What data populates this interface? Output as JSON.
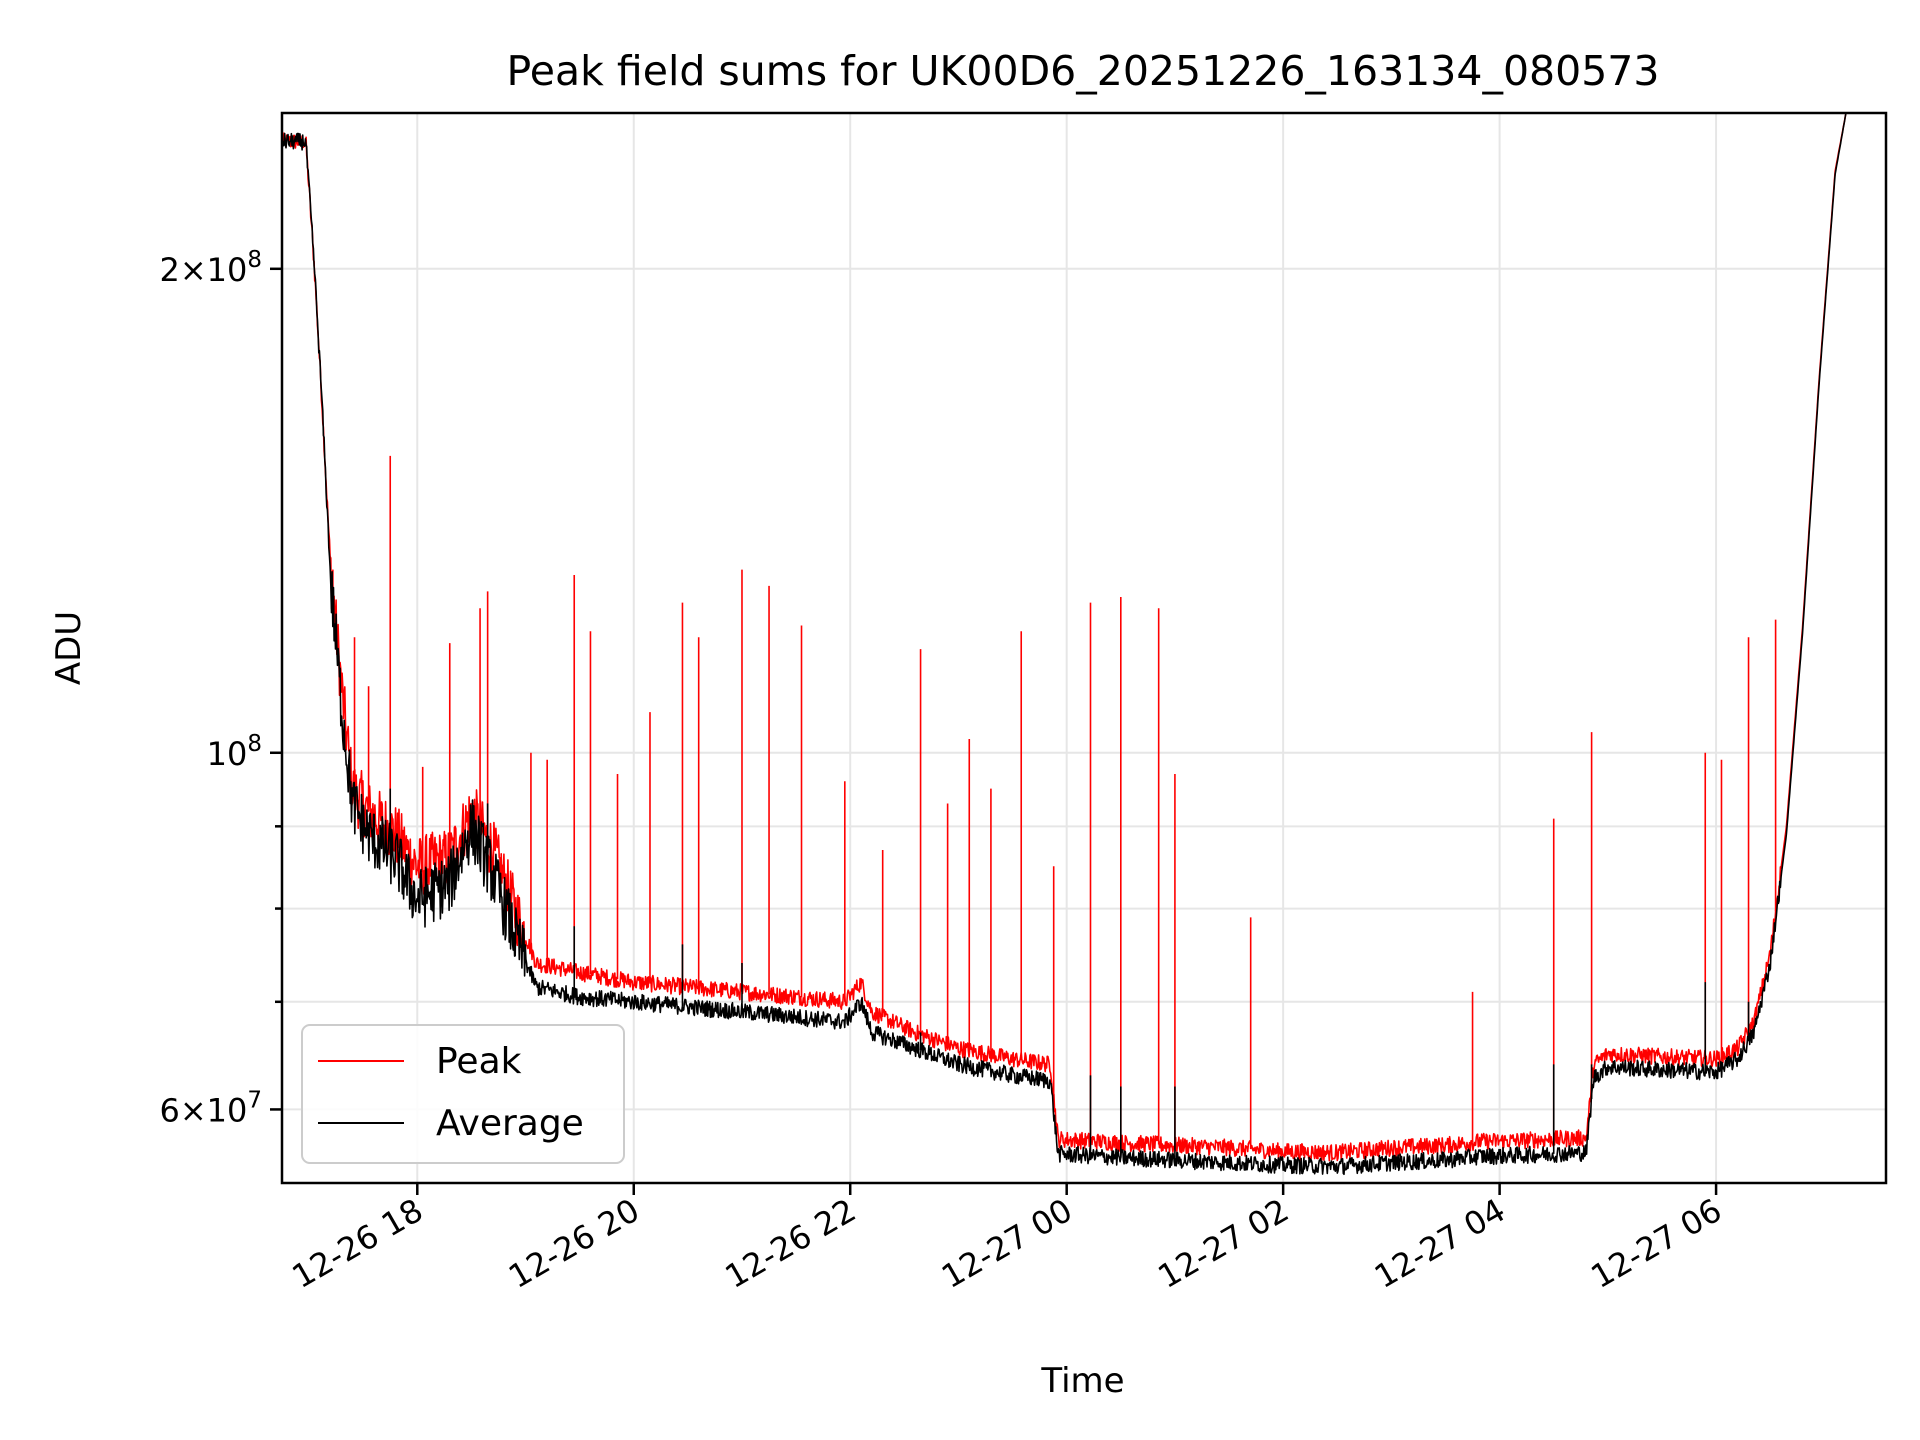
{
  "chart_data": {
    "type": "line",
    "title": "Peak field sums for UK00D6_20251226_163134_080573",
    "xlabel": "Time",
    "ylabel": "ADU",
    "yscale": "log",
    "ylim": [
      54000000,
      250000000
    ],
    "xlim_hours": [
      16.75,
      31.57
    ],
    "grid": true,
    "legend_position": "lower-left",
    "x_ticks": [
      {
        "hour": 18,
        "label": "12-26 18"
      },
      {
        "hour": 20,
        "label": "12-26 20"
      },
      {
        "hour": 22,
        "label": "12-26 22"
      },
      {
        "hour": 24,
        "label": "12-27 00"
      },
      {
        "hour": 26,
        "label": "12-27 02"
      },
      {
        "hour": 28,
        "label": "12-27 04"
      },
      {
        "hour": 30,
        "label": "12-27 06"
      }
    ],
    "y_major_ticks": [
      {
        "value": 60000000,
        "mant": "6",
        "exp": "7"
      },
      {
        "value": 100000000,
        "mant": "",
        "exp": "8"
      },
      {
        "value": 200000000,
        "mant": "2",
        "exp": "8"
      }
    ],
    "y_minor_ticks": [
      70000000,
      80000000,
      90000000
    ],
    "series": [
      {
        "name": "Peak",
        "color": "#ff0000",
        "baseline": [
          [
            16.75,
            240000000
          ],
          [
            16.97,
            240000000
          ],
          [
            17.05,
            200000000
          ],
          [
            17.12,
            165000000
          ],
          [
            17.2,
            130000000
          ],
          [
            17.3,
            110000000
          ],
          [
            17.4,
            95000000
          ],
          [
            17.55,
            92000000
          ],
          [
            17.8,
            89000000
          ],
          [
            18.0,
            85000000
          ],
          [
            18.3,
            86000000
          ],
          [
            18.5,
            92000000
          ],
          [
            18.7,
            87000000
          ],
          [
            18.9,
            80000000
          ],
          [
            19.1,
            74000000
          ],
          [
            19.5,
            73000000
          ],
          [
            20.0,
            72000000
          ],
          [
            20.5,
            71500000
          ],
          [
            21.0,
            71000000
          ],
          [
            21.5,
            70500000
          ],
          [
            21.95,
            70000000
          ],
          [
            22.1,
            72000000
          ],
          [
            22.2,
            69000000
          ],
          [
            22.6,
            67000000
          ],
          [
            23.0,
            65500000
          ],
          [
            23.5,
            64500000
          ],
          [
            23.85,
            64000000
          ],
          [
            23.92,
            57500000
          ],
          [
            24.5,
            57200000
          ],
          [
            25.0,
            57000000
          ],
          [
            25.5,
            56800000
          ],
          [
            26.0,
            56500000
          ],
          [
            26.5,
            56400000
          ],
          [
            27.0,
            56800000
          ],
          [
            27.5,
            57000000
          ],
          [
            27.8,
            57300000
          ],
          [
            28.2,
            57400000
          ],
          [
            28.8,
            57600000
          ],
          [
            28.87,
            64000000
          ],
          [
            29.0,
            65000000
          ],
          [
            29.5,
            64700000
          ],
          [
            30.0,
            64500000
          ],
          [
            30.2,
            65500000
          ],
          [
            30.35,
            68000000
          ],
          [
            30.5,
            75000000
          ],
          [
            30.65,
            90000000
          ],
          [
            30.8,
            120000000
          ],
          [
            30.95,
            170000000
          ],
          [
            31.1,
            230000000
          ],
          [
            31.2,
            250000000
          ],
          [
            31.57,
            250000000
          ]
        ],
        "spikes": [
          [
            17.22,
            130000000
          ],
          [
            17.42,
            118000000
          ],
          [
            17.55,
            110000000
          ],
          [
            17.75,
            153000000
          ],
          [
            18.05,
            98000000
          ],
          [
            18.3,
            117000000
          ],
          [
            18.58,
            123000000
          ],
          [
            18.65,
            126000000
          ],
          [
            19.05,
            100000000
          ],
          [
            19.2,
            99000000
          ],
          [
            19.45,
            129000000
          ],
          [
            19.6,
            119000000
          ],
          [
            19.85,
            97000000
          ],
          [
            20.15,
            106000000
          ],
          [
            20.45,
            124000000
          ],
          [
            20.6,
            118000000
          ],
          [
            21.0,
            130000000
          ],
          [
            21.25,
            127000000
          ],
          [
            21.55,
            120000000
          ],
          [
            21.95,
            96000000
          ],
          [
            22.3,
            87000000
          ],
          [
            22.65,
            116000000
          ],
          [
            22.9,
            93000000
          ],
          [
            23.1,
            102000000
          ],
          [
            23.3,
            95000000
          ],
          [
            23.58,
            119000000
          ],
          [
            23.88,
            85000000
          ],
          [
            24.22,
            124000000
          ],
          [
            24.5,
            125000000
          ],
          [
            24.85,
            123000000
          ],
          [
            25.0,
            97000000
          ],
          [
            25.7,
            79000000
          ],
          [
            27.75,
            71000000
          ],
          [
            28.5,
            91000000
          ],
          [
            28.85,
            103000000
          ],
          [
            29.9,
            100000000
          ],
          [
            30.05,
            99000000
          ],
          [
            30.3,
            118000000
          ],
          [
            30.55,
            121000000
          ]
        ]
      },
      {
        "name": "Average",
        "color": "#000000",
        "baseline": [
          [
            16.75,
            240000000
          ],
          [
            16.97,
            240000000
          ],
          [
            17.05,
            200000000
          ],
          [
            17.12,
            165000000
          ],
          [
            17.2,
            128000000
          ],
          [
            17.3,
            107000000
          ],
          [
            17.4,
            93000000
          ],
          [
            17.55,
            89000000
          ],
          [
            17.8,
            86000000
          ],
          [
            18.0,
            81000000
          ],
          [
            18.3,
            83000000
          ],
          [
            18.5,
            90000000
          ],
          [
            18.7,
            84000000
          ],
          [
            18.9,
            77000000
          ],
          [
            19.1,
            71500000
          ],
          [
            19.5,
            70500000
          ],
          [
            20.0,
            70000000
          ],
          [
            20.5,
            69500000
          ],
          [
            21.0,
            69000000
          ],
          [
            21.5,
            68500000
          ],
          [
            21.95,
            68000000
          ],
          [
            22.1,
            70000000
          ],
          [
            22.2,
            67000000
          ],
          [
            22.6,
            65500000
          ],
          [
            23.0,
            64000000
          ],
          [
            23.5,
            63000000
          ],
          [
            23.85,
            62500000
          ],
          [
            23.92,
            56300000
          ],
          [
            24.5,
            56000000
          ],
          [
            25.0,
            55800000
          ],
          [
            25.5,
            55600000
          ],
          [
            26.0,
            55400000
          ],
          [
            26.5,
            55300000
          ],
          [
            27.0,
            55600000
          ],
          [
            27.5,
            55800000
          ],
          [
            27.8,
            56100000
          ],
          [
            28.2,
            56200000
          ],
          [
            28.8,
            56400000
          ],
          [
            28.87,
            62800000
          ],
          [
            29.0,
            63800000
          ],
          [
            29.5,
            63500000
          ],
          [
            30.0,
            63300000
          ],
          [
            30.2,
            64500000
          ],
          [
            30.35,
            67000000
          ],
          [
            30.5,
            74000000
          ],
          [
            30.65,
            89000000
          ],
          [
            30.8,
            119000000
          ],
          [
            30.95,
            169000000
          ],
          [
            31.1,
            229000000
          ],
          [
            31.2,
            250000000
          ],
          [
            31.57,
            250000000
          ]
        ],
        "spikes": [
          [
            17.75,
            95000000
          ],
          [
            18.65,
            93000000
          ],
          [
            19.45,
            78000000
          ],
          [
            20.45,
            76000000
          ],
          [
            21.0,
            74000000
          ],
          [
            22.65,
            67000000
          ],
          [
            24.22,
            63000000
          ],
          [
            24.5,
            62000000
          ],
          [
            25.0,
            62000000
          ],
          [
            28.5,
            64000000
          ],
          [
            28.85,
            64000000
          ],
          [
            29.9,
            72000000
          ],
          [
            30.3,
            70000000
          ]
        ]
      }
    ]
  }
}
